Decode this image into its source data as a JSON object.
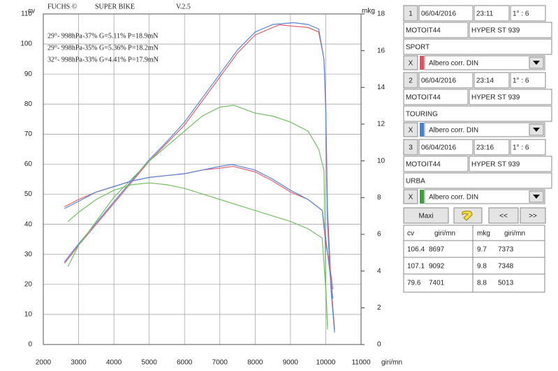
{
  "chart_data": {
    "type": "line",
    "brand": "FUCHS ©",
    "title": "SUPER BIKE",
    "version": "V.2.5",
    "ylabel": "cv",
    "y2label": "mkg",
    "xlabel": "giri/mn",
    "grid": true,
    "xlim": [
      2000,
      11000
    ],
    "xticks": [
      2000,
      3000,
      4000,
      5000,
      6000,
      7000,
      8000,
      9000,
      10000,
      11000
    ],
    "ylim": [
      0,
      110
    ],
    "yticks": [
      0,
      10,
      20,
      30,
      40,
      50,
      60,
      70,
      80,
      90,
      100,
      110
    ],
    "y2lim": [
      0,
      18
    ],
    "y2ticks": [
      0,
      2,
      4,
      6,
      8,
      10,
      12,
      14,
      16,
      18
    ],
    "annotations": [
      {
        "text": "29°- 998hPa-37% G=5.11% P=18.9mN",
        "color": "#e06070"
      },
      {
        "text": "29°- 998hPa-35% G=5.36% P=18.2mN",
        "color": "#5a86d6"
      },
      {
        "text": "32°- 998hPa-33% G=4.41% P=17.9mN",
        "color": "#72c062"
      }
    ],
    "series": [
      {
        "color": "#e06070",
        "x": [
          2600,
          3000,
          3500,
          4000,
          4500,
          5000,
          5500,
          6000,
          6500,
          7000,
          7500,
          8000,
          8500,
          8697,
          9000,
          9500,
          9800,
          9950,
          10000,
          10050,
          10150,
          10250
        ],
        "values": [
          27,
          33,
          40,
          47,
          54,
          61,
          67,
          73,
          81,
          89,
          97,
          103,
          105.5,
          106.4,
          106,
          105.5,
          104,
          95,
          80,
          45,
          20,
          5
        ]
      },
      {
        "color": "#5a86d6",
        "x": [
          2600,
          3000,
          3500,
          4000,
          4500,
          5000,
          5500,
          6000,
          6500,
          7000,
          7500,
          8000,
          8500,
          9092,
          9500,
          9800,
          9950,
          10000,
          10050,
          10150,
          10250
        ],
        "values": [
          27.5,
          33.5,
          40.5,
          47.5,
          54.5,
          61.5,
          67.5,
          74,
          82,
          90,
          98,
          104,
          106.5,
          107.1,
          106.5,
          105,
          95,
          78,
          40,
          18,
          4
        ]
      },
      {
        "color": "#72c062",
        "x": [
          2700,
          3000,
          3500,
          4000,
          4500,
          5000,
          5500,
          6000,
          6500,
          7000,
          7401,
          8000,
          8500,
          9000,
          9500,
          9800,
          9950,
          10000,
          10050
        ],
        "values": [
          26,
          33,
          41,
          49,
          55,
          61,
          66,
          71,
          76,
          79,
          79.6,
          77,
          76,
          74,
          71,
          65,
          58,
          20,
          5
        ]
      },
      {
        "color": "#e06070",
        "axis": "y2",
        "x": [
          2600,
          3000,
          3500,
          4000,
          4500,
          5000,
          5500,
          6000,
          6500,
          7000,
          7373,
          8000,
          8500,
          9000,
          9500,
          9900,
          10000,
          10100,
          10200
        ],
        "values": [
          7.5,
          7.9,
          8.3,
          8.6,
          8.9,
          9.1,
          9.2,
          9.3,
          9.5,
          9.6,
          9.7,
          9.4,
          8.9,
          8.3,
          7.9,
          7.3,
          5.5,
          4.5,
          3
        ]
      },
      {
        "color": "#5a86d6",
        "axis": "y2",
        "x": [
          2600,
          3000,
          3500,
          4000,
          4500,
          5000,
          5500,
          6000,
          6500,
          7000,
          7348,
          8000,
          8500,
          9000,
          9500,
          9900,
          10000,
          10100,
          10200
        ],
        "values": [
          7.4,
          7.8,
          8.3,
          8.6,
          8.9,
          9.1,
          9.2,
          9.3,
          9.5,
          9.7,
          9.8,
          9.5,
          9.0,
          8.4,
          7.9,
          7.3,
          5.8,
          4.2,
          2.5
        ]
      },
      {
        "color": "#72c062",
        "axis": "y2",
        "x": [
          2700,
          3000,
          3500,
          4000,
          4500,
          5000,
          5013,
          5500,
          6000,
          6500,
          7000,
          7500,
          8000,
          8500,
          9000,
          9500,
          9900,
          10000,
          10050
        ],
        "values": [
          6.7,
          7.2,
          7.9,
          8.4,
          8.7,
          8.8,
          8.8,
          8.7,
          8.5,
          8.2,
          7.9,
          7.6,
          7.3,
          7.0,
          6.7,
          6.3,
          5.8,
          3,
          1
        ]
      }
    ]
  },
  "panel": {
    "runs": [
      {
        "color": "#e05060",
        "number": 1,
        "date": "06/04/2016",
        "time": "23:11",
        "ratio": "1° : 6",
        "bike": "MOTOIT44",
        "model": "HYPER ST 939",
        "mode": "SPORT",
        "close": "X",
        "correction": "Albero corr. DIN"
      },
      {
        "color": "#4a80d0",
        "number": 2,
        "date": "06/04/2016",
        "time": "23:14",
        "ratio": "1° : 6",
        "bike": "MOTOIT44",
        "model": "HYPER ST 939",
        "mode": "TOURING",
        "close": "X",
        "correction": "Albero corr. DIN"
      },
      {
        "color": "#3f9f3f",
        "number": 3,
        "date": "06/04/2016",
        "time": "23:16",
        "ratio": "1° : 6",
        "bike": "MOTOIT44",
        "model": "HYPER ST 939",
        "mode": "URBA",
        "close": "X",
        "correction": "Albero corr. DIN"
      }
    ],
    "buttons": [
      "Maxi",
      "<<",
      ">>"
    ],
    "table": {
      "header": [
        "cv",
        "giri/mn",
        "mkg",
        "giri/mn"
      ],
      "rows": [
        [
          106.4,
          8697,
          9.7,
          7373
        ],
        [
          107.1,
          9092,
          9.8,
          7348
        ],
        [
          79.6,
          7401,
          8.8,
          5013
        ]
      ]
    }
  }
}
